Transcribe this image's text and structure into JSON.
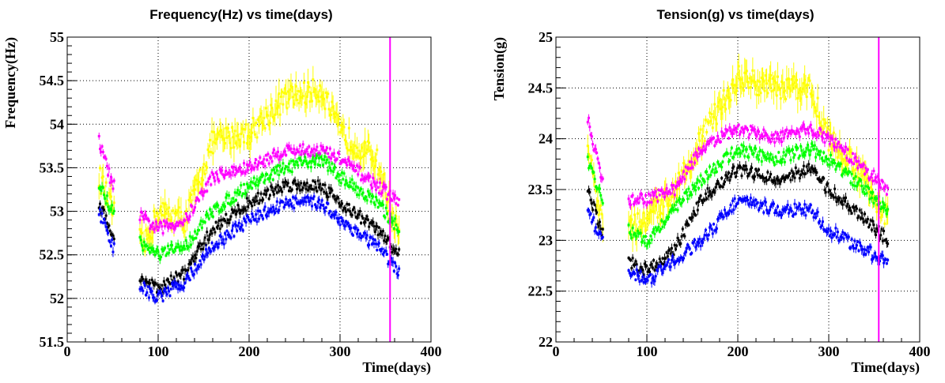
{
  "chart_data": [
    {
      "type": "scatter",
      "title": "Frequency(Hz) vs time(days)",
      "xlabel": "Time(days)",
      "ylabel": "Frequency(Hz)",
      "xlim": [
        0,
        400
      ],
      "ylim": [
        51.5,
        55
      ],
      "xticks": [
        "0",
        "100",
        "200",
        "300",
        "400"
      ],
      "yticks": [
        "51.5",
        "52",
        "52.5",
        "53",
        "53.5",
        "54",
        "54.5",
        "55"
      ],
      "grid": true,
      "vertical_line": {
        "x": 355,
        "color": "#ff00ff"
      },
      "series": [
        {
          "color": "#ffff00",
          "x": [
            35,
            50,
            85,
            100,
            130,
            160,
            200,
            240,
            280,
            300,
            340,
            365
          ],
          "y": [
            53.4,
            53.0,
            52.6,
            53.0,
            52.9,
            53.8,
            53.9,
            54.3,
            54.4,
            53.9,
            53.6,
            52.7
          ]
        },
        {
          "color": "#ff00ff",
          "x": [
            35,
            50,
            85,
            100,
            130,
            160,
            200,
            240,
            280,
            300,
            340,
            365
          ],
          "y": [
            53.8,
            53.3,
            52.9,
            52.8,
            52.9,
            53.4,
            53.5,
            53.7,
            53.7,
            53.6,
            53.3,
            53.1
          ]
        },
        {
          "color": "#00ff00",
          "x": [
            35,
            50,
            85,
            100,
            130,
            160,
            200,
            240,
            280,
            300,
            340,
            365
          ],
          "y": [
            53.3,
            53.0,
            52.6,
            52.5,
            52.6,
            53.0,
            53.3,
            53.5,
            53.6,
            53.4,
            53.1,
            52.8
          ]
        },
        {
          "color": "#000000",
          "x": [
            35,
            50,
            85,
            100,
            130,
            160,
            200,
            240,
            280,
            300,
            340,
            365
          ],
          "y": [
            53.1,
            52.7,
            52.2,
            52.1,
            52.3,
            52.8,
            53.1,
            53.3,
            53.3,
            53.1,
            52.8,
            52.5
          ]
        },
        {
          "color": "#0000ff",
          "x": [
            35,
            50,
            85,
            100,
            130,
            160,
            200,
            240,
            280,
            300,
            340,
            365
          ],
          "y": [
            53.0,
            52.6,
            52.1,
            52.0,
            52.2,
            52.6,
            52.9,
            53.1,
            53.1,
            52.9,
            52.6,
            52.3
          ]
        }
      ]
    },
    {
      "type": "scatter",
      "title": "Tension(g) vs time(days)",
      "xlabel": "Time(days)",
      "ylabel": "Tension(g)",
      "xlim": [
        0,
        400
      ],
      "ylim": [
        22,
        25
      ],
      "xticks": [
        "0",
        "100",
        "200",
        "300",
        "400"
      ],
      "yticks": [
        "22",
        "22.5",
        "23",
        "23.5",
        "24",
        "24.5",
        "25"
      ],
      "grid": true,
      "vertical_line": {
        "x": 355,
        "color": "#ff00ff"
      },
      "series": [
        {
          "color": "#ffff00",
          "x": [
            35,
            50,
            80,
            100,
            130,
            160,
            200,
            240,
            280,
            300,
            340,
            365
          ],
          "y": [
            23.9,
            23.2,
            23.1,
            23.2,
            23.5,
            24.0,
            24.6,
            24.5,
            24.5,
            24.0,
            23.6,
            23.2
          ]
        },
        {
          "color": "#ff00ff",
          "x": [
            35,
            50,
            80,
            100,
            130,
            160,
            200,
            240,
            280,
            300,
            340,
            365
          ],
          "y": [
            24.2,
            23.6,
            23.4,
            23.4,
            23.5,
            23.9,
            24.1,
            24.0,
            24.1,
            24.0,
            23.7,
            23.5
          ]
        },
        {
          "color": "#00ff00",
          "x": [
            35,
            50,
            80,
            100,
            130,
            160,
            200,
            240,
            280,
            300,
            340,
            365
          ],
          "y": [
            23.8,
            23.4,
            23.1,
            23.0,
            23.3,
            23.6,
            23.9,
            23.8,
            23.9,
            23.8,
            23.5,
            23.3
          ]
        },
        {
          "color": "#000000",
          "x": [
            35,
            50,
            80,
            100,
            130,
            160,
            200,
            240,
            280,
            300,
            340,
            365
          ],
          "y": [
            23.5,
            23.1,
            22.8,
            22.7,
            22.9,
            23.4,
            23.7,
            23.6,
            23.7,
            23.5,
            23.2,
            23.0
          ]
        },
        {
          "color": "#0000ff",
          "x": [
            35,
            50,
            80,
            100,
            130,
            160,
            200,
            240,
            280,
            300,
            340,
            365
          ],
          "y": [
            23.3,
            23.0,
            22.7,
            22.6,
            22.8,
            23.0,
            23.4,
            23.3,
            23.3,
            23.1,
            22.9,
            22.8
          ]
        }
      ]
    }
  ]
}
